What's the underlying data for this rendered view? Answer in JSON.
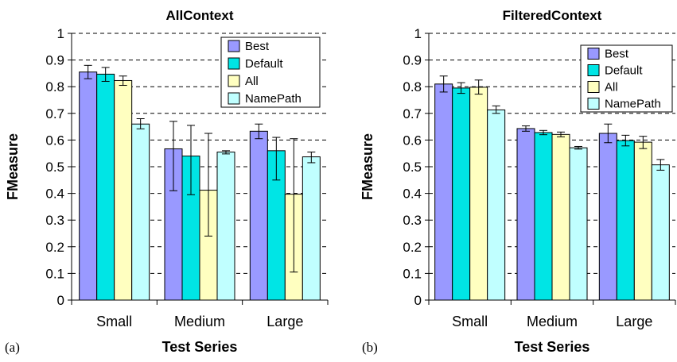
{
  "chart_data": [
    {
      "type": "bar",
      "title": "AllContext",
      "panel_label": "(a)",
      "xlabel": "Test Series",
      "ylabel": "FMeasure",
      "categories": [
        "Small",
        "Medium",
        "Large"
      ],
      "ylim": [
        0,
        1
      ],
      "yticks": [
        "0",
        "0.1",
        "0.2",
        "0.3",
        "0.4",
        "0.5",
        "0.6",
        "0.7",
        "0.8",
        "0.9",
        "1"
      ],
      "grid": true,
      "legend_position": "top-right",
      "series": [
        {
          "name": "Best",
          "color": "#9999ff",
          "values": [
            0.855,
            0.567,
            0.633
          ],
          "error_low": [
            0.83,
            0.41,
            0.605
          ],
          "error_high": [
            0.88,
            0.67,
            0.66
          ]
        },
        {
          "name": "Default",
          "color": "#00e5e5",
          "values": [
            0.847,
            0.54,
            0.56
          ],
          "error_low": [
            0.82,
            0.395,
            0.45
          ],
          "error_high": [
            0.872,
            0.655,
            0.61
          ]
        },
        {
          "name": "All",
          "color": "#ffffc0",
          "values": [
            0.823,
            0.412,
            0.397
          ],
          "error_low": [
            0.805,
            0.24,
            0.105
          ],
          "error_high": [
            0.84,
            0.625,
            0.605
          ]
        },
        {
          "name": "NamePath",
          "color": "#c0ffff",
          "values": [
            0.66,
            0.555,
            0.537
          ],
          "error_low": [
            0.642,
            0.548,
            0.515
          ],
          "error_high": [
            0.68,
            0.56,
            0.555
          ]
        }
      ]
    },
    {
      "type": "bar",
      "title": "FilteredContext",
      "panel_label": "(b)",
      "xlabel": "Test Series",
      "ylabel": "FMeasure",
      "categories": [
        "Small",
        "Medium",
        "Large"
      ],
      "ylim": [
        0,
        1
      ],
      "yticks": [
        "0",
        "0.1",
        "0.2",
        "0.3",
        "0.4",
        "0.5",
        "0.6",
        "0.7",
        "0.8",
        "0.9",
        "1"
      ],
      "grid": true,
      "legend_position": "top-right",
      "series": [
        {
          "name": "Best",
          "color": "#9999ff",
          "values": [
            0.81,
            0.643,
            0.625
          ],
          "error_low": [
            0.78,
            0.633,
            0.59
          ],
          "error_high": [
            0.84,
            0.653,
            0.66
          ]
        },
        {
          "name": "Default",
          "color": "#00e5e5",
          "values": [
            0.795,
            0.628,
            0.598
          ],
          "error_low": [
            0.775,
            0.62,
            0.578
          ],
          "error_high": [
            0.815,
            0.636,
            0.618
          ]
        },
        {
          "name": "All",
          "color": "#ffffc0",
          "values": [
            0.798,
            0.621,
            0.592
          ],
          "error_low": [
            0.772,
            0.612,
            0.568
          ],
          "error_high": [
            0.825,
            0.63,
            0.614
          ]
        },
        {
          "name": "NamePath",
          "color": "#c0ffff",
          "values": [
            0.713,
            0.571,
            0.507
          ],
          "error_low": [
            0.7,
            0.566,
            0.487
          ],
          "error_high": [
            0.728,
            0.576,
            0.527
          ]
        }
      ]
    }
  ]
}
